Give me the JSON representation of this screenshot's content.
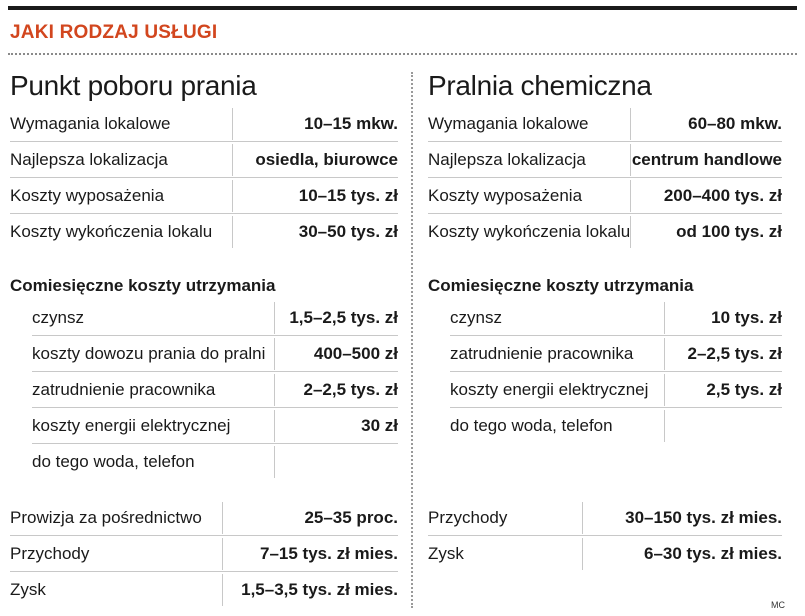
{
  "header": {
    "title": "JAKI RODZAJ USŁUGI",
    "accent": "#d2461e"
  },
  "left": {
    "title": "Punkt poboru prania",
    "basics": [
      {
        "label": "Wymagania lokalowe",
        "value": "10–15 mkw."
      },
      {
        "label": "Najlepsza lokalizacja",
        "value": "osiedla, biurowce"
      },
      {
        "label": "Koszty wyposażenia",
        "value": "10–15 tys. zł"
      },
      {
        "label": "Koszty wykończenia lokalu",
        "value": "30–50 tys. zł"
      }
    ],
    "monthly_title": "Comiesięczne koszty utrzymania",
    "monthly": [
      {
        "label": "czynsz",
        "value": "1,5–2,5 tys. zł"
      },
      {
        "label": "koszty dowozu prania do pralni",
        "value": "400–500 zł"
      },
      {
        "label": "zatrudnienie pracownika",
        "value": "2–2,5 tys. zł"
      },
      {
        "label": "koszty energii elektrycznej",
        "value": "30 zł"
      },
      {
        "label": "do tego woda, telefon",
        "value": ""
      }
    ],
    "summary": [
      {
        "label": "Prowizja za pośrednictwo",
        "value": "25–35 proc."
      },
      {
        "label": "Przychody",
        "value": "7–15 tys. zł mies."
      },
      {
        "label": "Zysk",
        "value": "1,5–3,5 tys. zł mies."
      }
    ]
  },
  "right": {
    "title": "Pralnia chemiczna",
    "basics": [
      {
        "label": "Wymagania lokalowe",
        "value": "60–80 mkw."
      },
      {
        "label": "Najlepsza lokalizacja",
        "value": "centrum handlowe"
      },
      {
        "label": "Koszty wyposażenia",
        "value": "200–400 tys. zł"
      },
      {
        "label": "Koszty wykończenia lokalu",
        "value": "od 100 tys. zł"
      }
    ],
    "monthly_title": "Comiesięczne koszty utrzymania",
    "monthly": [
      {
        "label": "czynsz",
        "value": "10 tys. zł"
      },
      {
        "label": "zatrudnienie pracownika",
        "value": "2–2,5 tys. zł"
      },
      {
        "label": "koszty energii elektrycznej",
        "value": "2,5 tys. zł"
      },
      {
        "label": "do tego woda, telefon",
        "value": ""
      }
    ],
    "summary": [
      {
        "label": "Przychody",
        "value": "30–150 tys. zł mies."
      },
      {
        "label": "Zysk",
        "value": "6–30 tys. zł mies."
      }
    ]
  },
  "credit": "MC"
}
